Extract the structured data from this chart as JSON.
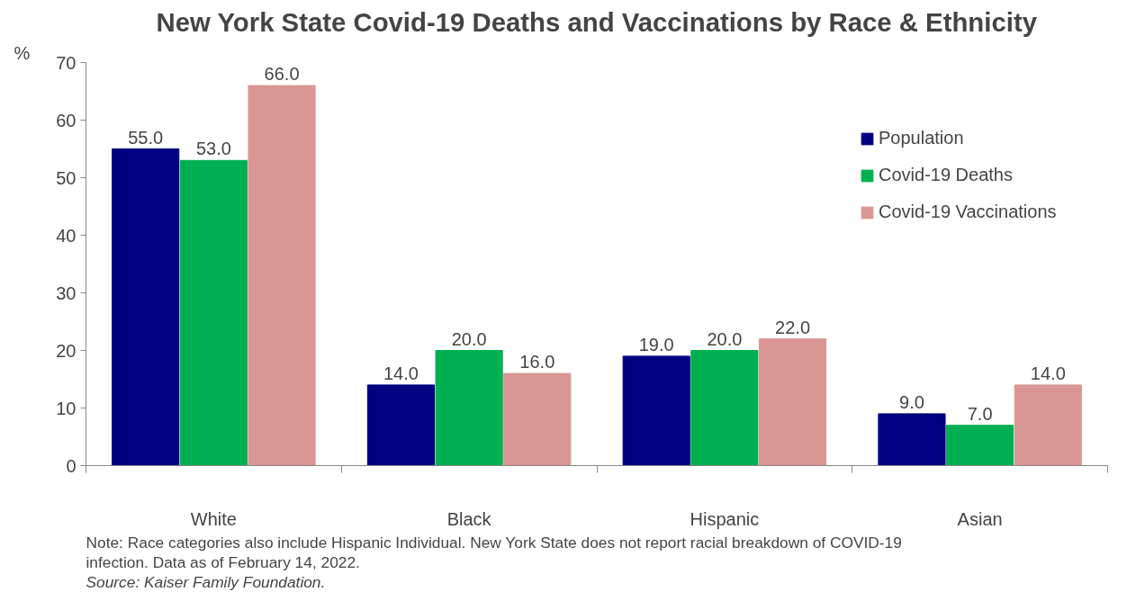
{
  "chart_data": {
    "type": "bar",
    "title": "New York State Covid-19 Deaths and Vaccinations by Race & Ethnicity",
    "ylabel": "%",
    "categories": [
      "White",
      "Black",
      "Hispanic",
      "Asian"
    ],
    "series": [
      {
        "name": "Population",
        "color": "#000080",
        "values": [
          55.0,
          14.0,
          19.0,
          9.0
        ],
        "value_labels": [
          "55.0",
          "14.0",
          "19.0",
          "9.0"
        ]
      },
      {
        "name": "Covid-19 Deaths",
        "color": "#00b050",
        "values": [
          53.0,
          20.0,
          20.0,
          7.0
        ],
        "value_labels": [
          "53.0",
          "20.0",
          "20.0",
          "7.0"
        ]
      },
      {
        "name": "Covid-19 Vaccinations",
        "color": "#d99694",
        "values": [
          66.0,
          16.0,
          22.0,
          14.0
        ],
        "value_labels": [
          "66.0",
          "16.0",
          "22.0",
          "14.0"
        ]
      }
    ],
    "ylim": [
      0,
      70
    ],
    "yticks": [
      0,
      10,
      20,
      30,
      40,
      50,
      60,
      70
    ],
    "grid": false,
    "legend": "right",
    "annotations": [
      "Note: Race categories also include Hispanic Individual. New York State does not report racial breakdown of COVID-19 infection. Data as of February 14, 2022.",
      "Source: Kaiser Family Foundation."
    ]
  }
}
